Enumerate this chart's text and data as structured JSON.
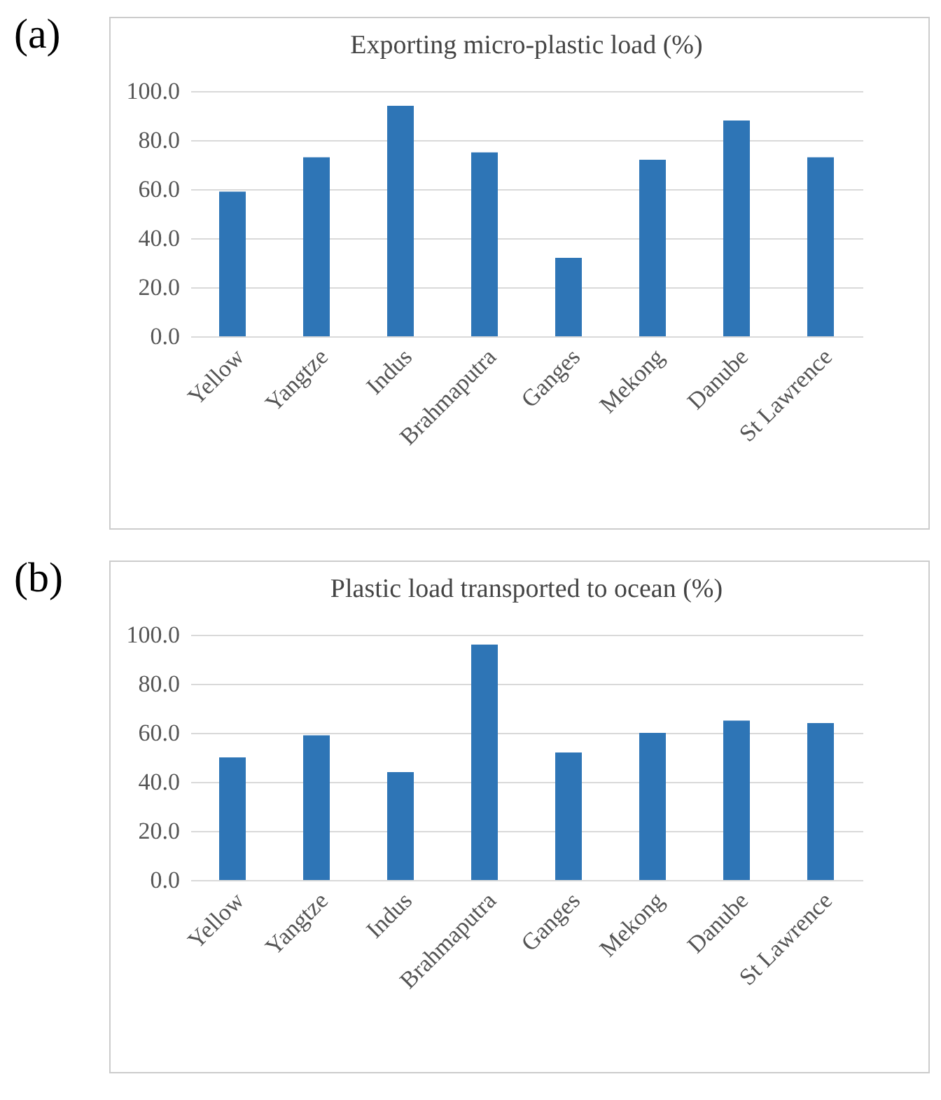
{
  "chart_data": [
    {
      "type": "bar",
      "title": "Exporting micro-plastic load (%)",
      "annotations": [
        "(a)"
      ],
      "categories": [
        "Yellow",
        "Yangtze",
        "Indus",
        "Brahmaputra",
        "Ganges",
        "Mekong",
        "Danube",
        "St Lawrence"
      ],
      "values": [
        59,
        73,
        94,
        75,
        32,
        72,
        88,
        73
      ],
      "color": "#2e75b6",
      "ylim": [
        0,
        100
      ],
      "yticks": [
        {
          "value": 0,
          "label": "0.0"
        },
        {
          "value": 20,
          "label": "20.0"
        },
        {
          "value": 40,
          "label": "40.0"
        },
        {
          "value": 60,
          "label": "60.0"
        },
        {
          "value": 80,
          "label": "80.0"
        },
        {
          "value": 100,
          "label": "100.0"
        }
      ],
      "grid": "y"
    },
    {
      "type": "bar",
      "title": "Plastic load transported to ocean (%)",
      "annotations": [
        "(b)"
      ],
      "categories": [
        "Yellow",
        "Yangtze",
        "Indus",
        "Brahmaputra",
        "Ganges",
        "Mekong",
        "Danube",
        "St Lawrence"
      ],
      "values": [
        50,
        59,
        44,
        96,
        52,
        60,
        65,
        64
      ],
      "color": "#2e75b6",
      "ylim": [
        0,
        100
      ],
      "yticks": [
        {
          "value": 0,
          "label": "0.0"
        },
        {
          "value": 20,
          "label": "20.0"
        },
        {
          "value": 40,
          "label": "40.0"
        },
        {
          "value": 60,
          "label": "60.0"
        },
        {
          "value": 80,
          "label": "80.0"
        },
        {
          "value": 100,
          "label": "100.0"
        }
      ],
      "grid": "y"
    }
  ]
}
